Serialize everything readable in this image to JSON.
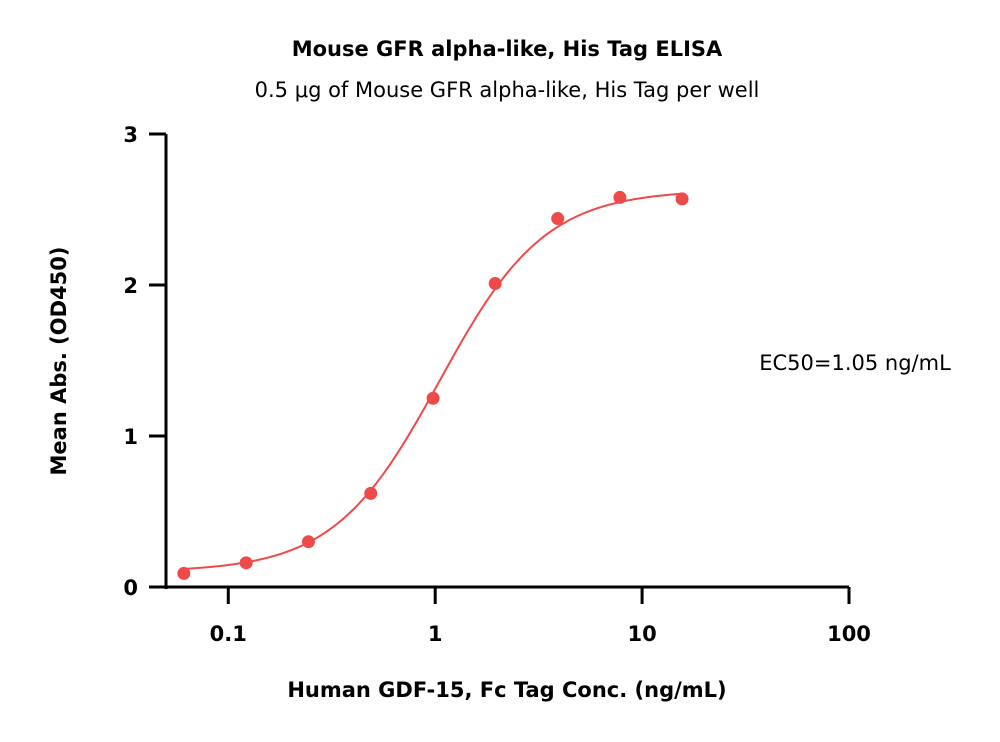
{
  "chart_data": {
    "type": "scatter",
    "title": "Mouse GFR alpha-like, His Tag ELISA",
    "subtitle": "0.5 μg of Mouse GFR alpha-like, His Tag per well",
    "xlabel": "Human GDF-15, Fc Tag Conc. (ng/mL)",
    "ylabel": "Mean Abs. (OD450)",
    "x_scale": "log",
    "xlim": [
      0.05,
      100
    ],
    "ylim": [
      0,
      3
    ],
    "x_ticks": [
      0.1,
      1,
      10,
      100
    ],
    "x_tick_labels": [
      "0.1",
      "1",
      "10",
      "100"
    ],
    "y_ticks": [
      0,
      1,
      2,
      3
    ],
    "y_tick_labels": [
      "0",
      "1",
      "2",
      "3"
    ],
    "grid": false,
    "annotation": "EC50=1.05 ng/mL",
    "fit": {
      "model": "4PL",
      "bottom": 0.1,
      "top": 2.63,
      "ec50": 1.05,
      "hill": 1.7,
      "x_range": [
        0.061,
        15.6
      ]
    },
    "series": [
      {
        "x": [
          0.061,
          0.122,
          0.244,
          0.488,
          0.977,
          1.95,
          3.91,
          7.81,
          15.6
        ],
        "y": [
          0.09,
          0.16,
          0.3,
          0.62,
          1.25,
          2.01,
          2.44,
          2.58,
          2.57
        ]
      }
    ],
    "colors": {
      "series": "#ef4a4a",
      "axis": "#000000"
    }
  }
}
